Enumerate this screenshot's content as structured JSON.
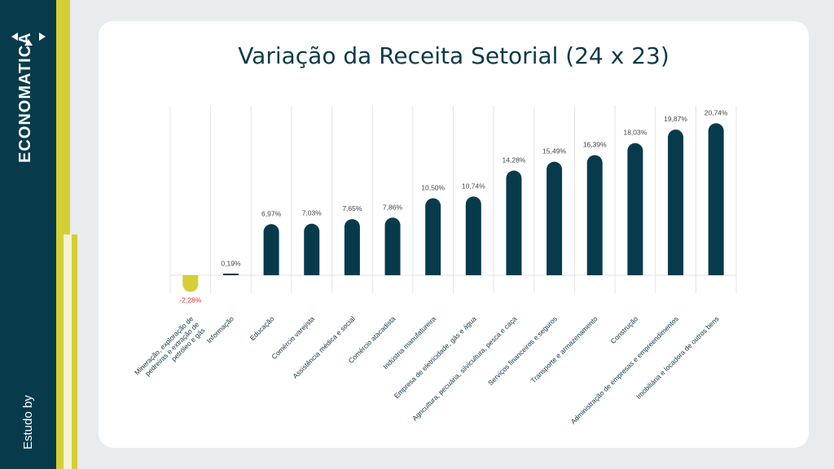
{
  "brand": {
    "name": "ECONOMATICA",
    "tagline": "Estudo by"
  },
  "colors": {
    "bar_positive": "#073b4c",
    "bar_negative": "#d3cf35",
    "label_negative": "#e03131",
    "label": "#444444"
  },
  "chart_data": {
    "type": "bar",
    "title": "Variação da Receita Setorial (24 x 23)",
    "xlabel": "",
    "ylabel": "",
    "ylim": [
      -3,
      22
    ],
    "grid": "vertical",
    "categories": [
      "Mineração, exploração de pedreiras e extração de petróleo e gás",
      "Informação",
      "Educação",
      "Comércio varejista",
      "Assistência médica e social",
      "Comércio atacadista",
      "Indústria manufatureira",
      "Empresa de eletricidade, gás e água",
      "Agricultura, pecuária, silvicultura, pesca e caça",
      "Serviços financeiros e seguros",
      "Transporte e armazenamento",
      "Construção",
      "Administração de empresas e empreendimentos",
      "Imobiliária e locadora de outros bens"
    ],
    "values": [
      -2.28,
      0.19,
      6.97,
      7.03,
      7.65,
      7.86,
      10.5,
      10.74,
      14.28,
      15.49,
      16.39,
      18.03,
      19.87,
      20.74
    ],
    "value_labels": [
      "-2,28%",
      "0,19%",
      "6,97%",
      "7,03%",
      "7,65%",
      "7,86%",
      "10,50%",
      "10,74%",
      "14,28%",
      "15,49%",
      "16,39%",
      "18,03%",
      "19,87%",
      "20,74%"
    ]
  }
}
